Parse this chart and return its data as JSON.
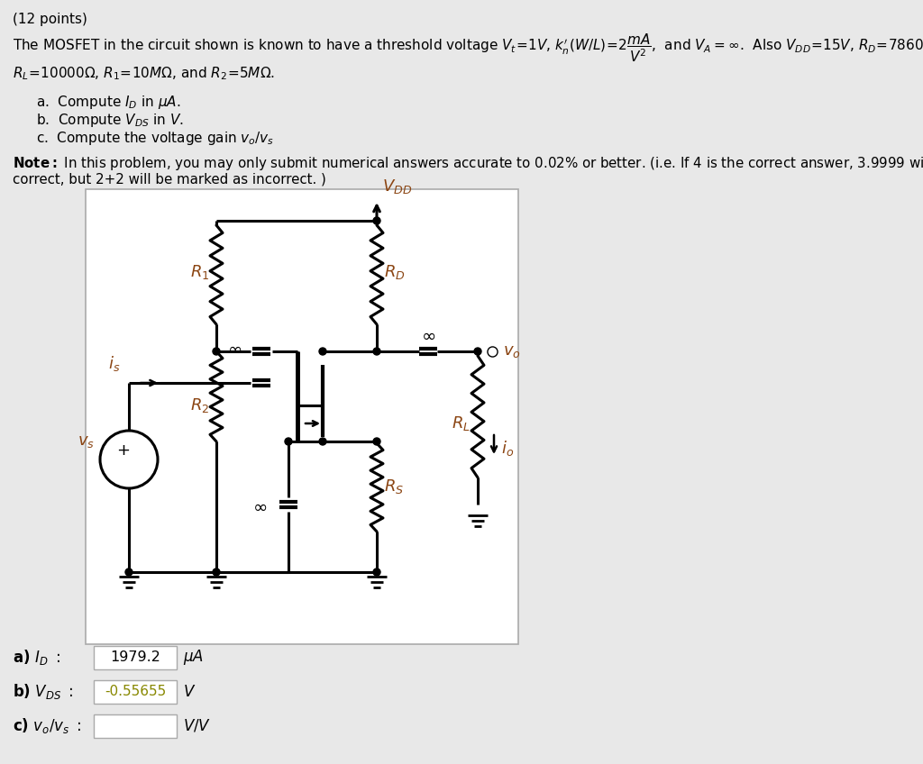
{
  "bg_color": "#e8e8e8",
  "circuit_bg": "#ffffff",
  "text_color": "#1a1a1a",
  "brown": "#8B4513",
  "title_text": "(12 points)",
  "answer_a_value": "1979.2",
  "answer_b_value": "-0.55655"
}
